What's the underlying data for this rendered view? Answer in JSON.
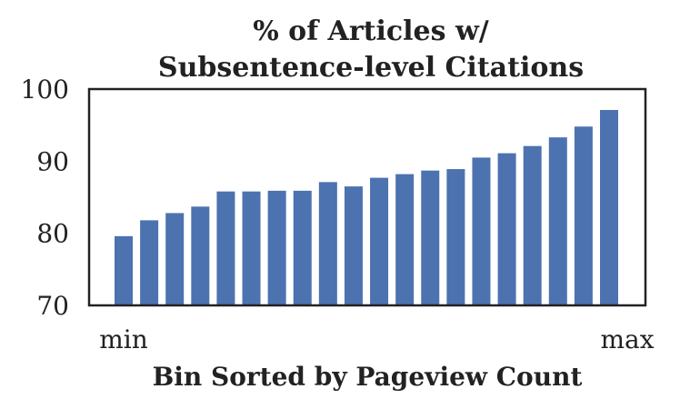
{
  "chart_data": {
    "type": "bar",
    "title_lines": [
      "% of Articles w/",
      "Subsentence-level Citations"
    ],
    "xlabel": "Bin Sorted by Pageview Count",
    "ylabel": "",
    "x_tick_labels": [
      "min",
      "max"
    ],
    "y_ticks": [
      "70",
      "80",
      "90",
      "100"
    ],
    "ylim": [
      70,
      100
    ],
    "grid": false,
    "bar_color": "#4c72b0",
    "values": [
      79.6,
      81.8,
      82.8,
      83.7,
      85.8,
      85.8,
      85.9,
      85.9,
      87.1,
      86.5,
      87.7,
      88.2,
      88.7,
      88.9,
      90.5,
      91.1,
      92.1,
      93.3,
      94.8,
      97.1
    ]
  }
}
